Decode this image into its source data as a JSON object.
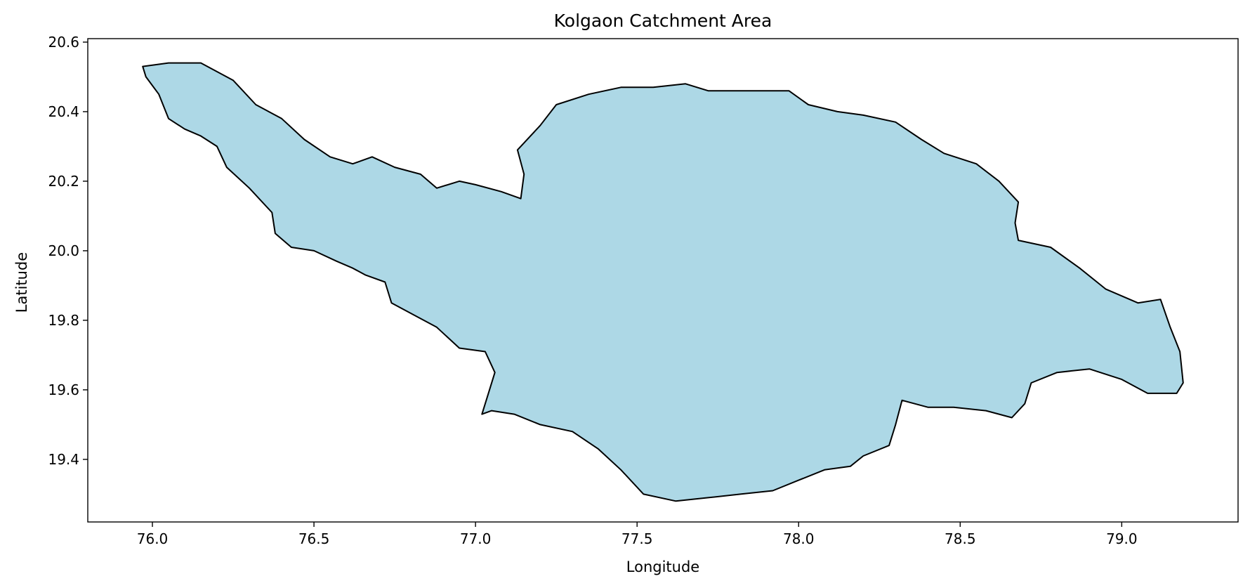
{
  "chart_data": {
    "type": "map",
    "title": "Kolgaon Catchment Area",
    "xlabel": "Longitude",
    "ylabel": "Latitude",
    "xlim": [
      75.8,
      79.36
    ],
    "ylim": [
      19.22,
      20.61
    ],
    "xticks": [
      76.0,
      76.5,
      77.0,
      77.5,
      78.0,
      78.5,
      79.0
    ],
    "xtick_labels": [
      "76.0",
      "76.5",
      "77.0",
      "77.5",
      "78.0",
      "78.5",
      "79.0"
    ],
    "yticks": [
      19.4,
      19.6,
      19.8,
      20.0,
      20.2,
      20.4,
      20.6
    ],
    "ytick_labels": [
      "19.4",
      "19.6",
      "19.8",
      "20.0",
      "20.2",
      "20.4",
      "20.6"
    ],
    "grid": false,
    "fill_color": "#add8e6",
    "edge_color": "#000000",
    "boundary": [
      [
        75.97,
        20.53
      ],
      [
        76.05,
        20.54
      ],
      [
        76.15,
        20.54
      ],
      [
        76.25,
        20.49
      ],
      [
        76.32,
        20.42
      ],
      [
        76.4,
        20.38
      ],
      [
        76.47,
        20.32
      ],
      [
        76.55,
        20.27
      ],
      [
        76.62,
        20.25
      ],
      [
        76.68,
        20.27
      ],
      [
        76.75,
        20.24
      ],
      [
        76.83,
        20.22
      ],
      [
        76.88,
        20.18
      ],
      [
        76.95,
        20.2
      ],
      [
        77.0,
        20.19
      ],
      [
        77.08,
        20.17
      ],
      [
        77.14,
        20.15
      ],
      [
        77.15,
        20.22
      ],
      [
        77.13,
        20.29
      ],
      [
        77.2,
        20.36
      ],
      [
        77.25,
        20.42
      ],
      [
        77.35,
        20.45
      ],
      [
        77.45,
        20.47
      ],
      [
        77.55,
        20.47
      ],
      [
        77.65,
        20.48
      ],
      [
        77.72,
        20.46
      ],
      [
        77.8,
        20.46
      ],
      [
        77.88,
        20.46
      ],
      [
        77.97,
        20.46
      ],
      [
        78.03,
        20.42
      ],
      [
        78.12,
        20.4
      ],
      [
        78.2,
        20.39
      ],
      [
        78.3,
        20.37
      ],
      [
        78.38,
        20.32
      ],
      [
        78.45,
        20.28
      ],
      [
        78.55,
        20.25
      ],
      [
        78.62,
        20.2
      ],
      [
        78.68,
        20.14
      ],
      [
        78.67,
        20.08
      ],
      [
        78.68,
        20.03
      ],
      [
        78.78,
        20.01
      ],
      [
        78.87,
        19.95
      ],
      [
        78.95,
        19.89
      ],
      [
        79.05,
        19.85
      ],
      [
        79.12,
        19.86
      ],
      [
        79.15,
        19.78
      ],
      [
        79.18,
        19.71
      ],
      [
        79.19,
        19.62
      ],
      [
        79.17,
        19.59
      ],
      [
        79.08,
        19.59
      ],
      [
        79.0,
        19.63
      ],
      [
        78.9,
        19.66
      ],
      [
        78.8,
        19.65
      ],
      [
        78.72,
        19.62
      ],
      [
        78.7,
        19.56
      ],
      [
        78.66,
        19.52
      ],
      [
        78.58,
        19.54
      ],
      [
        78.48,
        19.55
      ],
      [
        78.4,
        19.55
      ],
      [
        78.32,
        19.57
      ],
      [
        78.3,
        19.5
      ],
      [
        78.28,
        19.44
      ],
      [
        78.2,
        19.41
      ],
      [
        78.16,
        19.38
      ],
      [
        78.08,
        19.37
      ],
      [
        78.0,
        19.34
      ],
      [
        77.92,
        19.31
      ],
      [
        77.82,
        19.3
      ],
      [
        77.72,
        19.29
      ],
      [
        77.62,
        19.28
      ],
      [
        77.52,
        19.3
      ],
      [
        77.45,
        19.37
      ],
      [
        77.38,
        19.43
      ],
      [
        77.3,
        19.48
      ],
      [
        77.2,
        19.5
      ],
      [
        77.12,
        19.53
      ],
      [
        77.05,
        19.54
      ],
      [
        77.02,
        19.53
      ],
      [
        77.04,
        19.59
      ],
      [
        77.06,
        19.65
      ],
      [
        77.03,
        19.71
      ],
      [
        76.95,
        19.72
      ],
      [
        76.88,
        19.78
      ],
      [
        76.82,
        19.81
      ],
      [
        76.74,
        19.85
      ],
      [
        76.72,
        19.91
      ],
      [
        76.66,
        19.93
      ],
      [
        76.62,
        19.95
      ],
      [
        76.57,
        19.97
      ],
      [
        76.5,
        20.0
      ],
      [
        76.43,
        20.01
      ],
      [
        76.38,
        20.05
      ],
      [
        76.37,
        20.11
      ],
      [
        76.3,
        20.18
      ],
      [
        76.23,
        20.24
      ],
      [
        76.2,
        20.3
      ],
      [
        76.15,
        20.33
      ],
      [
        76.1,
        20.35
      ],
      [
        76.05,
        20.38
      ],
      [
        76.02,
        20.45
      ],
      [
        75.98,
        20.5
      ]
    ]
  }
}
